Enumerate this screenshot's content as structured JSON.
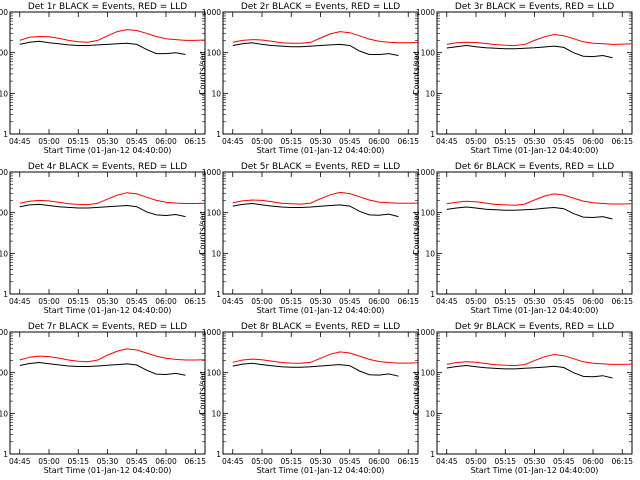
{
  "chart_data": {
    "type": "line",
    "layout": "3x3 grid of panels",
    "x_tick_labels": [
      "04:45",
      "05:00",
      "05:15",
      "05:30",
      "05:45",
      "06:00",
      "06:15"
    ],
    "y_tick_labels": [
      "1",
      "10",
      "100",
      "1000"
    ],
    "y_scale": "log",
    "ylim": [
      1,
      1000
    ],
    "xlim_minutes_from_0440": [
      0,
      100
    ],
    "xlabel": "Start Time (01-Jan-12 04:40:00)",
    "ylabel": "Counts/sec",
    "x_values_minutes": [
      0,
      5,
      10,
      15,
      20,
      25,
      30,
      35,
      40,
      45,
      50,
      55,
      60,
      65,
      70,
      75,
      80,
      85,
      90,
      95,
      100
    ],
    "series_colors": {
      "Events": "#000000",
      "LLD": "#ff0000"
    },
    "panels": [
      {
        "title": "Det 1r BLACK = Events, RED = LLD",
        "lld": [
          null,
          200,
          240,
          250,
          245,
          225,
          200,
          185,
          180,
          200,
          260,
          330,
          370,
          350,
          300,
          250,
          220,
          210,
          200,
          200,
          205
        ],
        "events": [
          null,
          160,
          180,
          190,
          175,
          165,
          155,
          150,
          150,
          155,
          160,
          165,
          170,
          160,
          120,
          95,
          95,
          100,
          90,
          null,
          null
        ]
      },
      {
        "title": "Det 2r BLACK = Events, RED = LLD",
        "lld": [
          null,
          180,
          200,
          210,
          205,
          190,
          175,
          170,
          170,
          180,
          230,
          290,
          330,
          310,
          260,
          215,
          190,
          180,
          175,
          175,
          178
        ],
        "events": [
          null,
          150,
          165,
          175,
          160,
          150,
          145,
          140,
          140,
          145,
          150,
          155,
          160,
          150,
          110,
          90,
          90,
          95,
          85,
          null,
          null
        ]
      },
      {
        "title": "Det 3r BLACK = Events, RED = LLD",
        "lld": [
          null,
          160,
          175,
          180,
          178,
          168,
          158,
          152,
          150,
          160,
          200,
          245,
          280,
          260,
          220,
          185,
          170,
          165,
          160,
          162,
          165
        ],
        "events": [
          null,
          130,
          140,
          150,
          140,
          132,
          128,
          125,
          125,
          128,
          132,
          138,
          145,
          135,
          100,
          82,
          80,
          85,
          75,
          null,
          null
        ]
      },
      {
        "title": "Det 4r BLACK = Events, RED = LLD",
        "lld": [
          null,
          170,
          190,
          200,
          195,
          180,
          165,
          160,
          158,
          170,
          215,
          270,
          310,
          290,
          240,
          200,
          180,
          172,
          168,
          168,
          170
        ],
        "events": [
          null,
          140,
          155,
          160,
          150,
          140,
          135,
          130,
          130,
          135,
          140,
          145,
          150,
          140,
          105,
          88,
          85,
          90,
          80,
          null,
          null
        ]
      },
      {
        "title": "Det 5r BLACK = Events, RED = LLD",
        "lld": [
          null,
          175,
          195,
          205,
          200,
          185,
          170,
          165,
          162,
          172,
          220,
          275,
          315,
          295,
          245,
          205,
          182,
          175,
          170,
          170,
          172
        ],
        "events": [
          null,
          145,
          160,
          168,
          155,
          145,
          138,
          134,
          134,
          138,
          144,
          150,
          155,
          145,
          108,
          88,
          86,
          92,
          80,
          null,
          null
        ]
      },
      {
        "title": "Det 6r BLACK = Events, RED = LLD",
        "lld": [
          null,
          165,
          180,
          190,
          185,
          172,
          160,
          155,
          152,
          162,
          205,
          255,
          290,
          272,
          228,
          192,
          175,
          168,
          163,
          163,
          165
        ],
        "events": [
          null,
          120,
          130,
          138,
          130,
          122,
          118,
          115,
          115,
          118,
          122,
          128,
          134,
          125,
          95,
          78,
          76,
          80,
          70,
          null,
          null
        ]
      },
      {
        "title": "Det 7r BLACK = Events, RED = LLD",
        "lld": [
          null,
          205,
          240,
          255,
          248,
          228,
          205,
          190,
          185,
          205,
          270,
          340,
          385,
          360,
          305,
          255,
          225,
          212,
          205,
          205,
          208
        ],
        "events": [
          null,
          150,
          168,
          178,
          165,
          155,
          146,
          142,
          142,
          146,
          152,
          158,
          164,
          154,
          115,
          92,
          90,
          96,
          86,
          null,
          null
        ]
      },
      {
        "title": "Det 8r BLACK = Events, RED = LLD",
        "lld": [
          null,
          180,
          205,
          215,
          208,
          192,
          178,
          172,
          170,
          180,
          225,
          285,
          325,
          305,
          255,
          212,
          188,
          178,
          172,
          172,
          175
        ],
        "events": [
          null,
          145,
          162,
          170,
          158,
          148,
          140,
          136,
          136,
          140,
          146,
          152,
          158,
          148,
          110,
          89,
          87,
          93,
          82,
          null,
          null
        ]
      },
      {
        "title": "Det 9r BLACK = Events, RED = LLD",
        "lld": [
          null,
          160,
          178,
          185,
          180,
          168,
          157,
          152,
          150,
          158,
          198,
          245,
          280,
          262,
          220,
          185,
          170,
          164,
          160,
          160,
          162
        ],
        "events": [
          null,
          130,
          142,
          150,
          140,
          132,
          127,
          124,
          124,
          128,
          132,
          137,
          143,
          134,
          100,
          81,
          79,
          84,
          74,
          null,
          null
        ]
      }
    ]
  }
}
